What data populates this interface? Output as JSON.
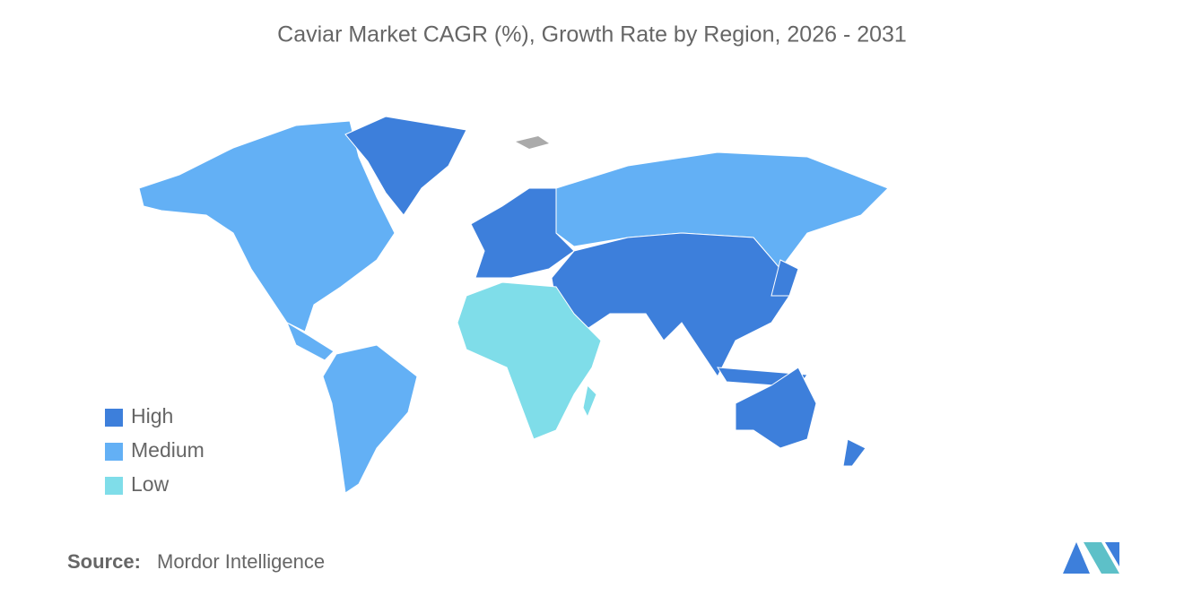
{
  "title": "Caviar Market CAGR (%), Growth Rate by Region, 2026 - 2031",
  "legend": [
    {
      "label": "High",
      "color": "#3d7fdb"
    },
    {
      "label": "Medium",
      "color": "#63b0f5"
    },
    {
      "label": "Low",
      "color": "#7fdde9"
    }
  ],
  "source": {
    "label": "Source:",
    "text": "Mordor Intelligence"
  }
}
